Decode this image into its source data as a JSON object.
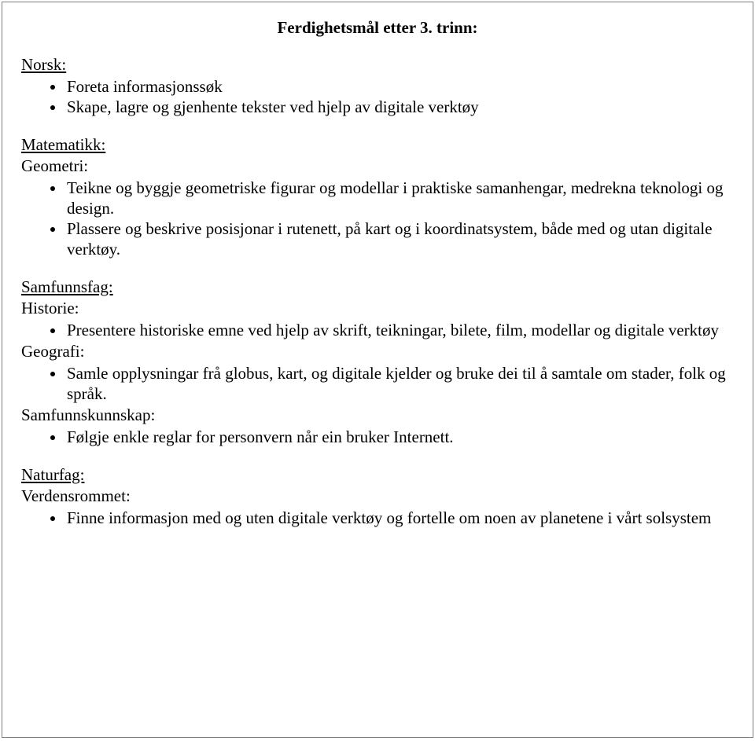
{
  "document": {
    "title": "Ferdighetsmål etter 3. trinn:",
    "background_color": "#ffffff",
    "border_color": "#808080",
    "text_color": "#000000",
    "font_family": "Times New Roman",
    "title_fontsize": 21,
    "body_fontsize": 21,
    "sections": {
      "norsk": {
        "header": "Norsk:",
        "items": {
          "0": "Foreta informasjonssøk",
          "1": "Skape, lagre og gjenhente tekster ved hjelp av digitale verktøy"
        }
      },
      "matematikk": {
        "header": "Matematikk:",
        "geometri": {
          "subheader": "Geometri:",
          "items": {
            "0": "Teikne og byggje geometriske figurar og modellar i praktiske samanhengar, medrekna teknologi og design.",
            "1": "Plassere og beskrive posisjonar i rutenett, på kart og i koordinatsystem, både med og utan digitale verktøy."
          }
        }
      },
      "samfunnsfag": {
        "header": "Samfunnsfag:",
        "historie": {
          "subheader": "Historie:",
          "items": {
            "0": "Presentere historiske emne ved hjelp av skrift, teikningar, bilete, film, modellar og digitale verktøy"
          }
        },
        "geografi": {
          "subheader": "Geografi:",
          "items": {
            "0": "Samle opplysningar frå globus, kart, og digitale kjelder og bruke dei til å samtale om stader, folk og språk."
          }
        },
        "samfunnskunnskap": {
          "subheader": "Samfunnskunnskap:",
          "items": {
            "0": "Følgje enkle reglar for personvern når ein bruker Internett."
          }
        }
      },
      "naturfag": {
        "header": "Naturfag:",
        "verdensrommet": {
          "subheader": "Verdensrommet:",
          "items": {
            "0": "Finne informasjon med og uten digitale verktøy og fortelle om noen av planetene i vårt solsystem"
          }
        }
      }
    }
  }
}
